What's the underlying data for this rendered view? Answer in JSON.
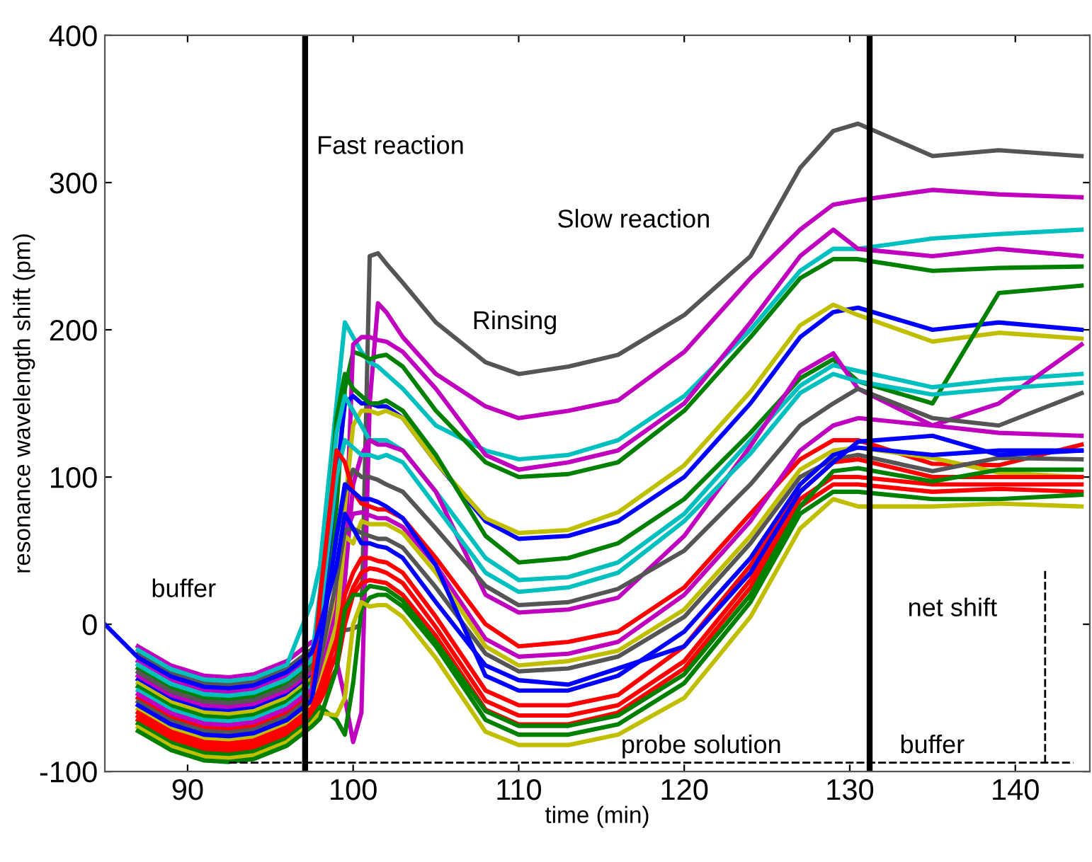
{
  "chart_data": {
    "type": "line",
    "xlabel": "time (min)",
    "ylabel": "resonance wavelength shift (pm)",
    "xlim": [
      85,
      144.5
    ],
    "ylim": [
      -100,
      400
    ],
    "xticks": [
      90,
      100,
      110,
      120,
      130,
      140
    ],
    "yticks": [
      -100,
      0,
      100,
      200,
      300,
      400
    ],
    "grid": false,
    "x": [
      85,
      87,
      89,
      91,
      92.5,
      94,
      96,
      97.5,
      98,
      99,
      99.5,
      100,
      100.5,
      101,
      101.5,
      102,
      103,
      105,
      108,
      110,
      113,
      116,
      120,
      124,
      127,
      129,
      130.5,
      135,
      139,
      144
    ],
    "ref_lines": [
      {
        "axis": "x",
        "value": 97.1,
        "color": "#000000"
      },
      {
        "axis": "x",
        "value": 131.2,
        "color": "#000000"
      }
    ],
    "annotations": [
      "Fast reaction",
      "buffer",
      "Rinsing",
      "Slow reaction",
      "probe solution",
      "buffer",
      "net shift"
    ],
    "series": [
      {
        "color": "#555555",
        "values": [
          null,
          -20,
          -33,
          -40,
          -41,
          -39,
          -30,
          -17,
          -8,
          -5,
          -4,
          -3,
          0,
          250,
          252,
          245,
          232,
          205,
          178,
          170,
          175,
          183,
          210,
          250,
          310,
          335,
          340,
          318,
          322,
          318
        ]
      },
      {
        "color": "#bf00bf",
        "values": [
          null,
          -15,
          -28,
          -35,
          -36,
          -34,
          -25,
          -12,
          -22,
          -25,
          -50,
          -80,
          -60,
          150,
          218,
          212,
          195,
          170,
          148,
          140,
          145,
          152,
          185,
          235,
          268,
          285,
          288,
          295,
          292,
          290
        ]
      },
      {
        "color": "#00bfbf",
        "values": [
          null,
          -17.5,
          -30.5,
          -37.5,
          -38.5,
          -36.5,
          -27.5,
          15,
          40,
          150,
          205,
          195,
          185,
          178,
          175,
          170,
          160,
          135,
          118,
          112,
          115,
          125,
          155,
          200,
          240,
          255,
          255,
          262,
          265,
          268
        ]
      },
      {
        "color": "#008000",
        "values": [
          null,
          -30,
          -43,
          -50,
          -51,
          -49,
          -40,
          -27,
          -12,
          80,
          160,
          185,
          183,
          180,
          182,
          183,
          175,
          145,
          110,
          100,
          102,
          110,
          145,
          195,
          235,
          248,
          248,
          240,
          242,
          243
        ]
      },
      {
        "color": "#bf00bf",
        "values": [
          null,
          -25,
          -38,
          -45,
          -46,
          -44,
          -35,
          -22,
          -28,
          -10,
          40,
          190,
          195,
          195,
          193,
          192,
          185,
          160,
          115,
          105,
          110,
          118,
          150,
          205,
          250,
          268,
          255,
          250,
          255,
          250
        ]
      },
      {
        "color": "#0000ff",
        "values": [
          null,
          -37.5,
          -50.5,
          -57.5,
          -58.5,
          -56.5,
          -47.5,
          -34.5,
          -4,
          100,
          150,
          155,
          150,
          150,
          148,
          148,
          140,
          110,
          70,
          58,
          60,
          70,
          100,
          150,
          195,
          212,
          215,
          200,
          205,
          200
        ]
      },
      {
        "color": "#bfbf00",
        "values": [
          null,
          -40,
          -53,
          -60,
          -61,
          -59,
          -50,
          -37,
          -32,
          20,
          80,
          135,
          145,
          145,
          143,
          145,
          140,
          110,
          72,
          62,
          64,
          76,
          108,
          158,
          203,
          217,
          210,
          192,
          198,
          194
        ]
      },
      {
        "color": "#008000",
        "values": [
          null,
          -42.5,
          -55.5,
          -62.5,
          -63.5,
          -61.5,
          -52.5,
          -39.5,
          2,
          140,
          170,
          160,
          155,
          150,
          150,
          152,
          145,
          115,
          60,
          42,
          45,
          55,
          85,
          130,
          167,
          180,
          165,
          150,
          225,
          230
        ]
      },
      {
        "color": "#00bfbf",
        "values": [
          null,
          -27.5,
          -40.5,
          -47.5,
          -48.5,
          -46.5,
          -37.5,
          -24.5,
          22,
          130,
          155,
          145,
          135,
          125,
          125,
          125,
          118,
          90,
          45,
          30,
          32,
          42,
          75,
          125,
          162,
          176,
          172,
          161,
          166,
          170
        ]
      },
      {
        "color": "#bf00bf",
        "values": [
          null,
          -35,
          -48,
          -55,
          -56,
          -54,
          -45,
          -32,
          -46,
          -20,
          30,
          95,
          115,
          125,
          122,
          122,
          118,
          90,
          20,
          8,
          10,
          18,
          60,
          121,
          171,
          184,
          160,
          135,
          150,
          190
        ]
      },
      {
        "color": "#00bfbf",
        "values": [
          null,
          -45,
          -58,
          -65,
          -66,
          -64,
          -55,
          -42,
          6,
          100,
          125,
          120,
          115,
          115,
          113,
          115,
          110,
          80,
          35,
          22,
          25,
          35,
          70,
          116,
          157,
          170,
          165,
          156,
          160,
          164
        ]
      },
      {
        "color": "#555555",
        "values": [
          null,
          -32.5,
          -45.5,
          -52.5,
          -53.5,
          -51.5,
          -42.5,
          -29.5,
          -18,
          60,
          90,
          105,
          100,
          100,
          98,
          95,
          90,
          65,
          26,
          13,
          15,
          24,
          50,
          95,
          135,
          150,
          160,
          140,
          135,
          157
        ]
      },
      {
        "color": "#ff0000",
        "values": [
          null,
          -50,
          -63,
          -70,
          -71,
          -69,
          -60,
          -47,
          18,
          118,
          110,
          90,
          82,
          80,
          78,
          78,
          72,
          45,
          0,
          -15,
          -12,
          -5,
          25,
          75,
          112,
          125,
          125,
          109,
          108,
          122
        ]
      },
      {
        "color": "#bf00bf",
        "values": [
          null,
          -47.5,
          -60.5,
          -67.5,
          -68.5,
          -66.5,
          -57.5,
          -44.5,
          -36,
          10,
          60,
          75,
          76,
          74,
          72,
          72,
          66,
          40,
          -10,
          -22,
          -20,
          -12,
          20,
          70,
          118,
          135,
          140,
          135,
          130,
          128
        ]
      },
      {
        "color": "#bfbf00",
        "values": [
          null,
          -57.5,
          -70.5,
          -77.5,
          -78.5,
          -76.5,
          -67.5,
          -54.5,
          -40,
          0,
          60,
          55,
          70,
          68,
          68,
          68,
          62,
          35,
          -15,
          -28,
          -25,
          -18,
          10,
          60,
          105,
          118,
          120,
          113,
          103,
          100
        ]
      },
      {
        "color": "#555555",
        "values": [
          null,
          -52.5,
          -65.5,
          -72.5,
          -73.5,
          -71.5,
          -62.5,
          -49.5,
          -25,
          30,
          64,
          65,
          62,
          60,
          58,
          58,
          52,
          25,
          -20,
          -32,
          -30,
          -22,
          5,
          55,
          100,
          112,
          115,
          104,
          113,
          112
        ]
      },
      {
        "color": "#0000ff",
        "values": [
          null,
          -55,
          -68,
          -75,
          -76,
          -74,
          -65,
          -52,
          -15,
          60,
          95,
          90,
          85,
          85,
          83,
          80,
          72,
          40,
          -35,
          -45,
          -45,
          -35,
          -5,
          45,
          95,
          115,
          120,
          115,
          118,
          118
        ]
      },
      {
        "color": "#ff0000",
        "values": [
          null,
          -60,
          -73,
          -80,
          -81,
          -79,
          -70,
          -57,
          -43,
          -10,
          20,
          35,
          45,
          45,
          43,
          42,
          35,
          5,
          -45,
          -55,
          -55,
          -48,
          -15,
          40,
          90,
          110,
          112,
          100,
          100,
          100
        ]
      },
      {
        "color": "#ff0000",
        "values": [
          null,
          -62.5,
          -75.5,
          -82.5,
          -83.5,
          -81.5,
          -72.5,
          -59.5,
          -49,
          -20,
          10,
          25,
          35,
          38,
          37,
          35,
          28,
          -2,
          -52,
          -62,
          -62,
          -55,
          -25,
          30,
          85,
          100,
          100,
          95,
          95,
          95
        ]
      },
      {
        "color": "#ff0000",
        "values": [
          null,
          -65,
          -78,
          -85,
          -86,
          -84,
          -75,
          -62,
          -52,
          -30,
          0,
          20,
          28,
          30,
          29,
          28,
          20,
          -8,
          -58,
          -68,
          -68,
          -60,
          -30,
          25,
          80,
          95,
          95,
          90,
          92,
          90
        ]
      },
      {
        "color": "#008000",
        "values": [
          null,
          -67.5,
          -80.5,
          -87.5,
          -88.5,
          -86.5,
          -77.5,
          -64.5,
          -56,
          -65,
          -75,
          -40,
          10,
          18,
          20,
          20,
          12,
          -15,
          -65,
          -75,
          -75,
          -68,
          -40,
          15,
          75,
          90,
          90,
          85,
          85,
          88
        ]
      },
      {
        "color": "#bfbf00",
        "values": [
          null,
          -70,
          -83,
          -90,
          -91,
          -89,
          -80,
          -67,
          -60,
          -62,
          -50,
          0,
          15,
          12,
          13,
          13,
          5,
          -23,
          -73,
          -82,
          -82,
          -75,
          -50,
          5,
          65,
          85,
          80,
          80,
          82,
          80
        ]
      },
      {
        "color": "#008000",
        "values": [
          null,
          -72.5,
          -85.5,
          -92.5,
          -93.5,
          -91.5,
          -82.5,
          -69.5,
          -64,
          -30,
          10,
          20,
          20,
          26,
          25,
          24,
          16,
          -12,
          -59,
          -69,
          -69,
          -62,
          -34,
          20,
          80,
          104,
          106,
          97,
          105,
          105
        ]
      },
      {
        "color": "#0000ff",
        "values": [
          0,
          -22.5,
          -35.5,
          -42.5,
          -43.5,
          -41.5,
          -32.5,
          -19.5,
          -1,
          40,
          75,
          65,
          55,
          55,
          53,
          52,
          45,
          15,
          -28,
          -38,
          -41,
          -30,
          -15,
          35,
          90,
          110,
          124,
          128,
          115,
          118
        ]
      },
      {
        "color": "#000000",
        "line_style": "dashed",
        "x": [
          92.5,
          143.5
        ],
        "values": [
          -94,
          -94
        ]
      },
      {
        "color": "#000000",
        "line_style": "dashed",
        "x": [
          141.8,
          141.8
        ],
        "values": [
          -94,
          37
        ]
      }
    ]
  }
}
